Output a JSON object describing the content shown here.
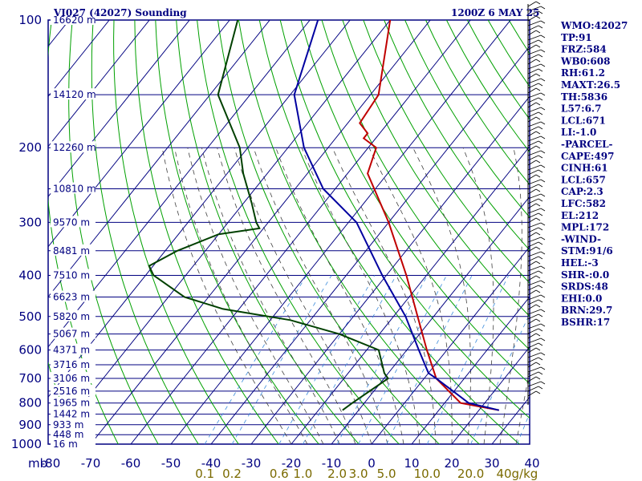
{
  "header": {
    "station": "VI027 (42027) Sounding",
    "time": "1200Z  6 MAY 25"
  },
  "indices": [
    "WMO:42027",
    "TP:91",
    "FRZ:584",
    "WB0:608",
    "RH:61.2",
    "MAXT:26.5",
    "TH:5836",
    "L57:6.7",
    "LCL:671",
    "LI:-1.0",
    "-PARCEL-",
    "CAPE:497",
    "CINH:61",
    "LCL:657",
    "CAP:2.3",
    "LFC:582",
    "EL:212",
    "MPL:172",
    "-WIND-",
    "STM:91/6",
    "HEL:-3",
    "SHR-:0.0",
    "SRDS:48",
    "EHI:0.0",
    "BRN:29.7",
    "BSHR:17"
  ],
  "axes": {
    "p_unit": "mb",
    "p_ticks": [
      "100",
      "200",
      "300",
      "400",
      "500",
      "600",
      "700",
      "800",
      "900",
      "1000"
    ],
    "t_ticks": [
      "-80",
      "-70",
      "-60",
      "-50",
      "-40",
      "-30",
      "-20",
      "-10",
      "0",
      "10",
      "20",
      "30",
      "40"
    ],
    "mixing_ratio_ticks": [
      "0.1",
      "0.2",
      "0.6",
      "1.0",
      "2.0",
      "3.0",
      "5.0",
      "10.0",
      "20.0",
      "40g/kg"
    ]
  },
  "chart_data": {
    "type": "line",
    "title": "VI027 (42027) Sounding",
    "y_scale": "log-pressure",
    "ylim": [
      1000,
      100
    ],
    "xlim": [
      -80,
      40
    ],
    "height_labels": [
      {
        "p": 100,
        "text": "16620 m"
      },
      {
        "p": 150,
        "text": "14120 m"
      },
      {
        "p": 200,
        "text": "12260 m"
      },
      {
        "p": 250,
        "text": "10810 m"
      },
      {
        "p": 300,
        "text": "9570 m"
      },
      {
        "p": 350,
        "text": "8481 m"
      },
      {
        "p": 400,
        "text": "7510 m"
      },
      {
        "p": 450,
        "text": "6623 m"
      },
      {
        "p": 500,
        "text": "5820 m"
      },
      {
        "p": 550,
        "text": "5067 m"
      },
      {
        "p": 600,
        "text": "4371 m"
      },
      {
        "p": 650,
        "text": "3716 m"
      },
      {
        "p": 700,
        "text": "3106 m"
      },
      {
        "p": 750,
        "text": "2516 m"
      },
      {
        "p": 800,
        "text": "1965 m"
      },
      {
        "p": 850,
        "text": "1442 m"
      },
      {
        "p": 900,
        "text": "933 m"
      },
      {
        "p": 950,
        "text": "448 m"
      },
      {
        "p": 1000,
        "text": "16 m"
      }
    ],
    "series": [
      {
        "color": "#c00000",
        "points": [
          [
            100,
            -80
          ],
          [
            150,
            -68
          ],
          [
            175,
            -67
          ],
          [
            185,
            -63
          ],
          [
            190,
            -63
          ],
          [
            200,
            -58
          ],
          [
            230,
            -55
          ],
          [
            300,
            -40
          ],
          [
            400,
            -25
          ],
          [
            500,
            -14
          ],
          [
            600,
            -5
          ],
          [
            700,
            3
          ],
          [
            800,
            14
          ],
          [
            832,
            25
          ]
        ]
      },
      {
        "color": "#0000a0",
        "points": [
          [
            100,
            -98
          ],
          [
            150,
            -89
          ],
          [
            200,
            -76
          ],
          [
            250,
            -63
          ],
          [
            300,
            -48
          ],
          [
            400,
            -31
          ],
          [
            500,
            -17
          ],
          [
            600,
            -7
          ],
          [
            680,
            0
          ],
          [
            700,
            3
          ],
          [
            800,
            16
          ],
          [
            832,
            25
          ]
        ]
      },
      {
        "color": "#004000",
        "points": [
          [
            100,
            -118
          ],
          [
            150,
            -108
          ],
          [
            200,
            -92
          ],
          [
            230,
            -86
          ],
          [
            270,
            -78
          ],
          [
            300,
            -73
          ],
          [
            310,
            -71
          ],
          [
            320,
            -80
          ],
          [
            350,
            -87
          ],
          [
            380,
            -91
          ],
          [
            400,
            -88
          ],
          [
            450,
            -76
          ],
          [
            480,
            -64
          ],
          [
            510,
            -45
          ],
          [
            550,
            -30
          ],
          [
            600,
            -17
          ],
          [
            680,
            -11
          ],
          [
            700,
            -9
          ],
          [
            800,
            -13
          ],
          [
            832,
            -14
          ]
        ]
      }
    ]
  },
  "colors": {
    "frame": "#000080",
    "isotherm": "#000080",
    "dry_adiabat": "#00a000",
    "moist_adiabat": "#404040",
    "mixing_ratio": "#3c8cdc",
    "temperature": "#c00000",
    "parcel": "#0000a0",
    "dewpoint": "#004000",
    "mixing_label": "#7a6a00"
  }
}
